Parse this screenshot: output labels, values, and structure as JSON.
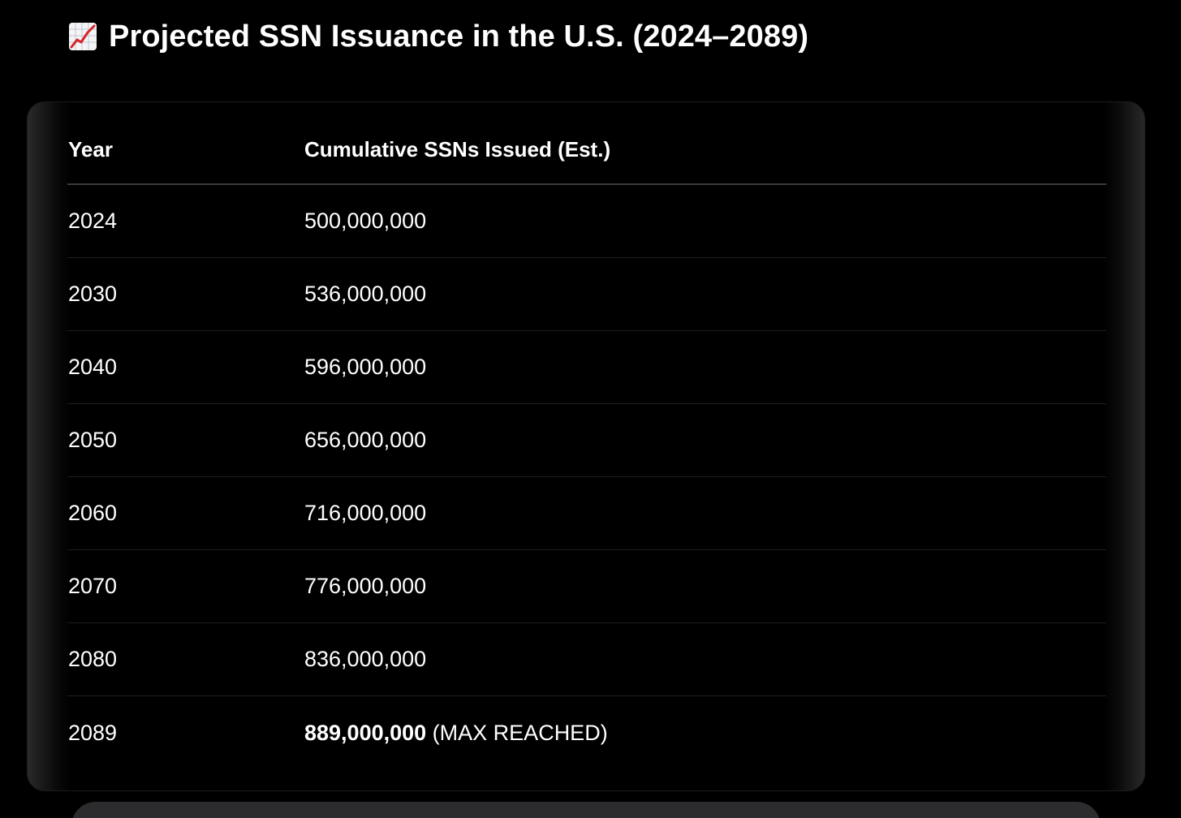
{
  "heading": {
    "icon": "chart-increasing-icon",
    "title": "Projected SSN Issuance in the U.S. (2024–2089)"
  },
  "table": {
    "columns": [
      "Year",
      "Cumulative SSNs Issued (Est.)"
    ],
    "rows": [
      {
        "year": "2024",
        "value": "500,000,000",
        "note": ""
      },
      {
        "year": "2030",
        "value": "536,000,000",
        "note": ""
      },
      {
        "year": "2040",
        "value": "596,000,000",
        "note": ""
      },
      {
        "year": "2050",
        "value": "656,000,000",
        "note": ""
      },
      {
        "year": "2060",
        "value": "716,000,000",
        "note": ""
      },
      {
        "year": "2070",
        "value": "776,000,000",
        "note": ""
      },
      {
        "year": "2080",
        "value": "836,000,000",
        "note": ""
      },
      {
        "year": "2089",
        "value": "889,000,000",
        "note": "(MAX REACHED)"
      }
    ]
  },
  "colors": {
    "background": "#000000",
    "text": "#ffffff",
    "divider": "#3a3a3a",
    "composer": "#2c2c2e"
  }
}
